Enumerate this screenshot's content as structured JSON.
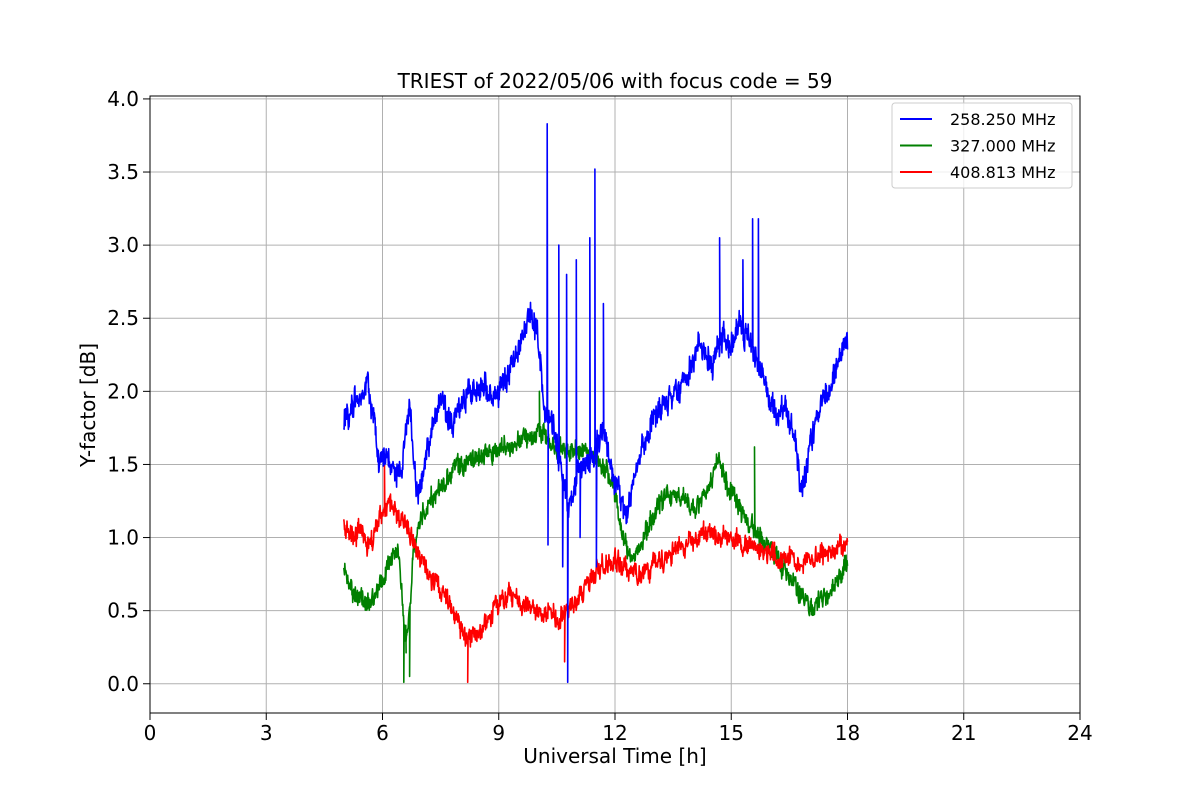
{
  "chart_data": {
    "type": "line",
    "title": "TRIEST of 2022/05/06 with focus code = 59",
    "xlabel": "Universal Time [h]",
    "ylabel": "Y-factor [dB]",
    "xlim": [
      0,
      24
    ],
    "ylim": [
      -0.2,
      4.02
    ],
    "xticks": [
      0,
      3,
      6,
      9,
      12,
      15,
      18,
      21,
      24
    ],
    "yticks": [
      0.0,
      0.5,
      1.0,
      1.5,
      2.0,
      2.5,
      3.0,
      3.5,
      4.0
    ],
    "xtick_labels": [
      "0",
      "3",
      "6",
      "9",
      "12",
      "15",
      "18",
      "21",
      "24"
    ],
    "ytick_labels": [
      "0.0",
      "0.5",
      "1.0",
      "1.5",
      "2.0",
      "2.5",
      "3.0",
      "3.5",
      "4.0"
    ],
    "grid": true,
    "legend_position": "top-right",
    "noise_amplitude": [
      0.09,
      0.07,
      0.07
    ],
    "spikes": [
      [
        [
          10.25,
          3.83
        ],
        [
          10.27,
          0.95
        ],
        [
          10.55,
          3.0
        ],
        [
          10.65,
          0.8
        ],
        [
          10.75,
          2.8
        ],
        [
          10.78,
          0.0
        ],
        [
          11.0,
          2.9
        ],
        [
          11.1,
          1.0
        ],
        [
          11.35,
          3.05
        ],
        [
          11.48,
          3.52
        ],
        [
          11.52,
          0.8
        ],
        [
          11.7,
          2.6
        ],
        [
          14.7,
          3.05
        ],
        [
          15.3,
          2.9
        ],
        [
          15.55,
          3.18
        ],
        [
          15.7,
          3.18
        ]
      ],
      [
        [
          6.55,
          0.0
        ],
        [
          6.6,
          0.4
        ],
        [
          6.7,
          0.05
        ],
        [
          10.05,
          2.0
        ],
        [
          15.6,
          1.62
        ]
      ],
      [
        [
          6.05,
          1.55
        ],
        [
          8.2,
          0.0
        ],
        [
          10.7,
          0.15
        ]
      ]
    ],
    "series": [
      {
        "name": "258.250 MHz",
        "color": "#0000ff",
        "x": [
          5.0,
          5.2,
          5.4,
          5.6,
          5.8,
          5.9,
          6.1,
          6.3,
          6.5,
          6.6,
          6.7,
          6.8,
          6.9,
          7.1,
          7.3,
          7.5,
          7.8,
          8.0,
          8.3,
          8.6,
          8.9,
          9.2,
          9.5,
          9.8,
          10.0,
          10.2,
          10.4,
          10.6,
          10.8,
          11.0,
          11.2,
          11.5,
          11.7,
          11.9,
          12.1,
          12.3,
          12.5,
          12.7,
          13.0,
          13.3,
          13.6,
          13.9,
          14.2,
          14.5,
          14.8,
          15.0,
          15.2,
          15.5,
          15.8,
          16.0,
          16.2,
          16.4,
          16.6,
          16.8,
          16.9,
          17.0,
          17.2,
          17.4,
          17.6,
          17.8,
          18.0
        ],
        "values": [
          1.8,
          1.9,
          1.95,
          2.05,
          1.8,
          1.5,
          1.55,
          1.45,
          1.5,
          1.75,
          1.9,
          1.5,
          1.3,
          1.55,
          1.75,
          1.95,
          1.75,
          1.9,
          2.0,
          2.05,
          1.95,
          2.1,
          2.25,
          2.55,
          2.4,
          1.8,
          1.75,
          1.5,
          1.2,
          1.4,
          1.5,
          1.6,
          1.75,
          1.5,
          1.3,
          1.15,
          1.4,
          1.6,
          1.8,
          1.9,
          2.0,
          2.15,
          2.3,
          2.2,
          2.4,
          2.3,
          2.45,
          2.35,
          2.1,
          1.95,
          1.8,
          1.9,
          1.75,
          1.3,
          1.4,
          1.6,
          1.8,
          1.95,
          2.05,
          2.25,
          2.35
        ]
      },
      {
        "name": "327.000 MHz",
        "color": "#008000",
        "x": [
          5.0,
          5.2,
          5.4,
          5.6,
          5.8,
          6.0,
          6.2,
          6.4,
          6.5,
          6.6,
          6.7,
          6.8,
          7.0,
          7.2,
          7.5,
          7.8,
          8.0,
          8.3,
          8.6,
          8.9,
          9.2,
          9.5,
          9.8,
          10.0,
          10.3,
          10.6,
          10.9,
          11.2,
          11.5,
          11.8,
          12.0,
          12.2,
          12.4,
          12.6,
          12.9,
          13.2,
          13.5,
          13.8,
          14.1,
          14.4,
          14.7,
          15.0,
          15.3,
          15.6,
          15.9,
          16.2,
          16.5,
          16.7,
          16.9,
          17.1,
          17.3,
          17.5,
          17.7,
          18.0
        ],
        "values": [
          0.8,
          0.65,
          0.6,
          0.55,
          0.6,
          0.7,
          0.85,
          0.95,
          0.6,
          0.2,
          0.5,
          0.9,
          1.15,
          1.25,
          1.35,
          1.45,
          1.5,
          1.55,
          1.55,
          1.6,
          1.6,
          1.65,
          1.7,
          1.75,
          1.65,
          1.6,
          1.6,
          1.6,
          1.55,
          1.45,
          1.3,
          1.0,
          0.85,
          0.9,
          1.1,
          1.25,
          1.3,
          1.25,
          1.2,
          1.35,
          1.5,
          1.3,
          1.15,
          1.05,
          0.95,
          0.85,
          0.75,
          0.65,
          0.55,
          0.5,
          0.55,
          0.6,
          0.7,
          0.85
        ]
      },
      {
        "name": "408.813 MHz",
        "color": "#ff0000",
        "x": [
          5.0,
          5.2,
          5.4,
          5.6,
          5.8,
          6.0,
          6.2,
          6.4,
          6.6,
          6.8,
          7.0,
          7.2,
          7.4,
          7.6,
          7.8,
          8.0,
          8.2,
          8.5,
          8.8,
          9.0,
          9.3,
          9.6,
          9.9,
          10.2,
          10.5,
          10.8,
          11.1,
          11.4,
          11.7,
          12.0,
          12.3,
          12.6,
          12.9,
          13.2,
          13.5,
          13.8,
          14.1,
          14.4,
          14.7,
          15.0,
          15.3,
          15.6,
          15.9,
          16.2,
          16.5,
          16.8,
          17.1,
          17.4,
          17.7,
          18.0
        ],
        "values": [
          1.1,
          1.0,
          1.05,
          0.95,
          1.0,
          1.2,
          1.25,
          1.15,
          1.1,
          0.95,
          0.85,
          0.75,
          0.7,
          0.6,
          0.5,
          0.4,
          0.3,
          0.35,
          0.45,
          0.55,
          0.6,
          0.55,
          0.5,
          0.5,
          0.45,
          0.5,
          0.6,
          0.75,
          0.8,
          0.85,
          0.8,
          0.75,
          0.8,
          0.85,
          0.9,
          0.95,
          1.0,
          1.05,
          1.0,
          1.0,
          0.95,
          0.95,
          0.9,
          0.85,
          0.85,
          0.8,
          0.85,
          0.9,
          0.9,
          0.95
        ]
      }
    ]
  }
}
